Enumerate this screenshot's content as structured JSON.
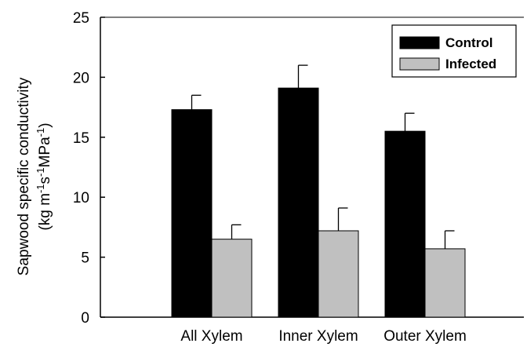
{
  "chart_data": {
    "type": "bar",
    "categories": [
      "All Xylem",
      "Inner Xylem",
      "Outer Xylem"
    ],
    "series": [
      {
        "name": "Control",
        "values": [
          17.3,
          19.1,
          15.5
        ],
        "errors": [
          1.2,
          1.9,
          1.5
        ],
        "color": "#000000"
      },
      {
        "name": "Infected",
        "values": [
          6.5,
          7.2,
          5.7
        ],
        "errors": [
          1.2,
          1.9,
          1.5
        ],
        "color": "#c0c0c0"
      }
    ],
    "ylabel_line1": "Sapwood specific conductivity",
    "ylabel_line2": "(kg m-1s-1MPa-1)",
    "ylim": [
      0,
      25
    ],
    "yticks": [
      "0",
      "5",
      "10",
      "15",
      "20",
      "25"
    ],
    "legend_position": "top-right",
    "grid": false
  }
}
